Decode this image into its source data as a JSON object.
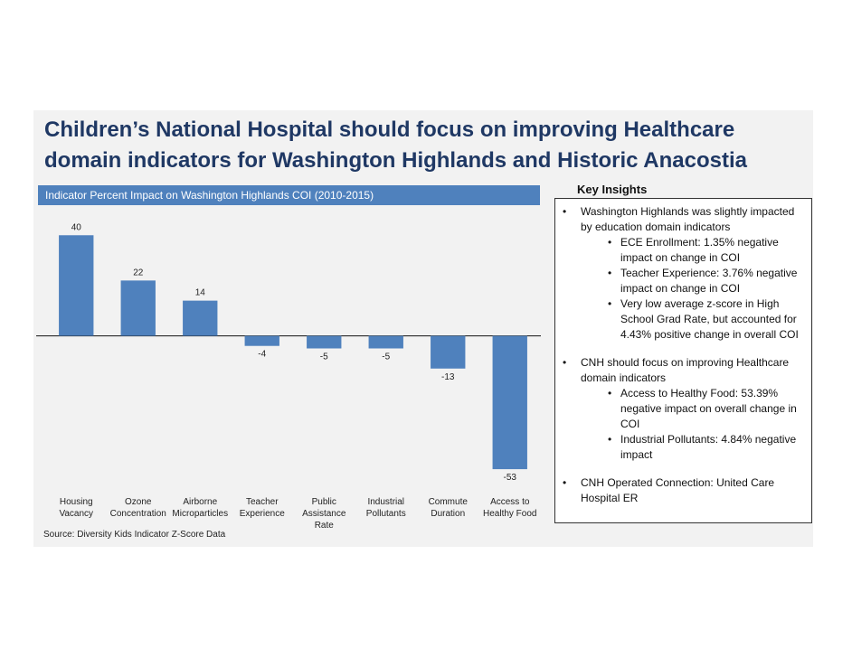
{
  "title_lines": [
    "Children’s National Hospital should focus on improving Healthcare",
    "domain indicators for Washington Highlands and Historic Anacostia"
  ],
  "chart_header": "Indicator Percent Impact on Washington Highlands COI (2010-2015)",
  "source": "Source: Diversity Kids Indicator Z-Score Data",
  "colors": {
    "bar": "#4f81bd",
    "title": "#1f3864",
    "header_bg": "#4f81bd"
  },
  "chart_data": {
    "type": "bar",
    "title": "Indicator Percent Impact on Washington Highlands COI (2010-2015)",
    "categories": [
      [
        "Housing",
        "Vacancy"
      ],
      [
        "Ozone",
        "Concentration"
      ],
      [
        "Airborne",
        "Microparticles"
      ],
      [
        "Teacher",
        "Experience"
      ],
      [
        "Public",
        "Assistance",
        "Rate"
      ],
      [
        "Industrial",
        "Pollutants"
      ],
      [
        "Commute",
        "Duration"
      ],
      [
        "Access to",
        "Healthy Food"
      ]
    ],
    "values": [
      40,
      22,
      14,
      -4,
      -5,
      -5,
      -13,
      -53
    ],
    "data_labels": [
      "40",
      "22",
      "14",
      "-4",
      "-5",
      "-5",
      "-13",
      "-53"
    ],
    "xlabel": "",
    "ylabel": "",
    "ylim": [
      -58,
      48
    ],
    "grid": false,
    "legend": "none"
  },
  "insights": {
    "title": "Key Insights",
    "items": [
      {
        "text": "Washington Highlands was slightly impacted by education domain indicators",
        "subs": [
          "ECE Enrollment: 1.35% negative impact on change in COI",
          "Teacher Experience: 3.76% negative impact on change in COI",
          "Very low average z-score in High School Grad Rate, but accounted for 4.43% positive change in overall COI"
        ]
      },
      {
        "text": "CNH should focus on improving Healthcare domain indicators",
        "subs": [
          "Access to Healthy Food: 53.39% negative impact on overall change in COI",
          "Industrial Pollutants: 4.84% negative impact"
        ]
      },
      {
        "text": "CNH Operated Connection: United Care Hospital ER",
        "subs": []
      }
    ]
  }
}
